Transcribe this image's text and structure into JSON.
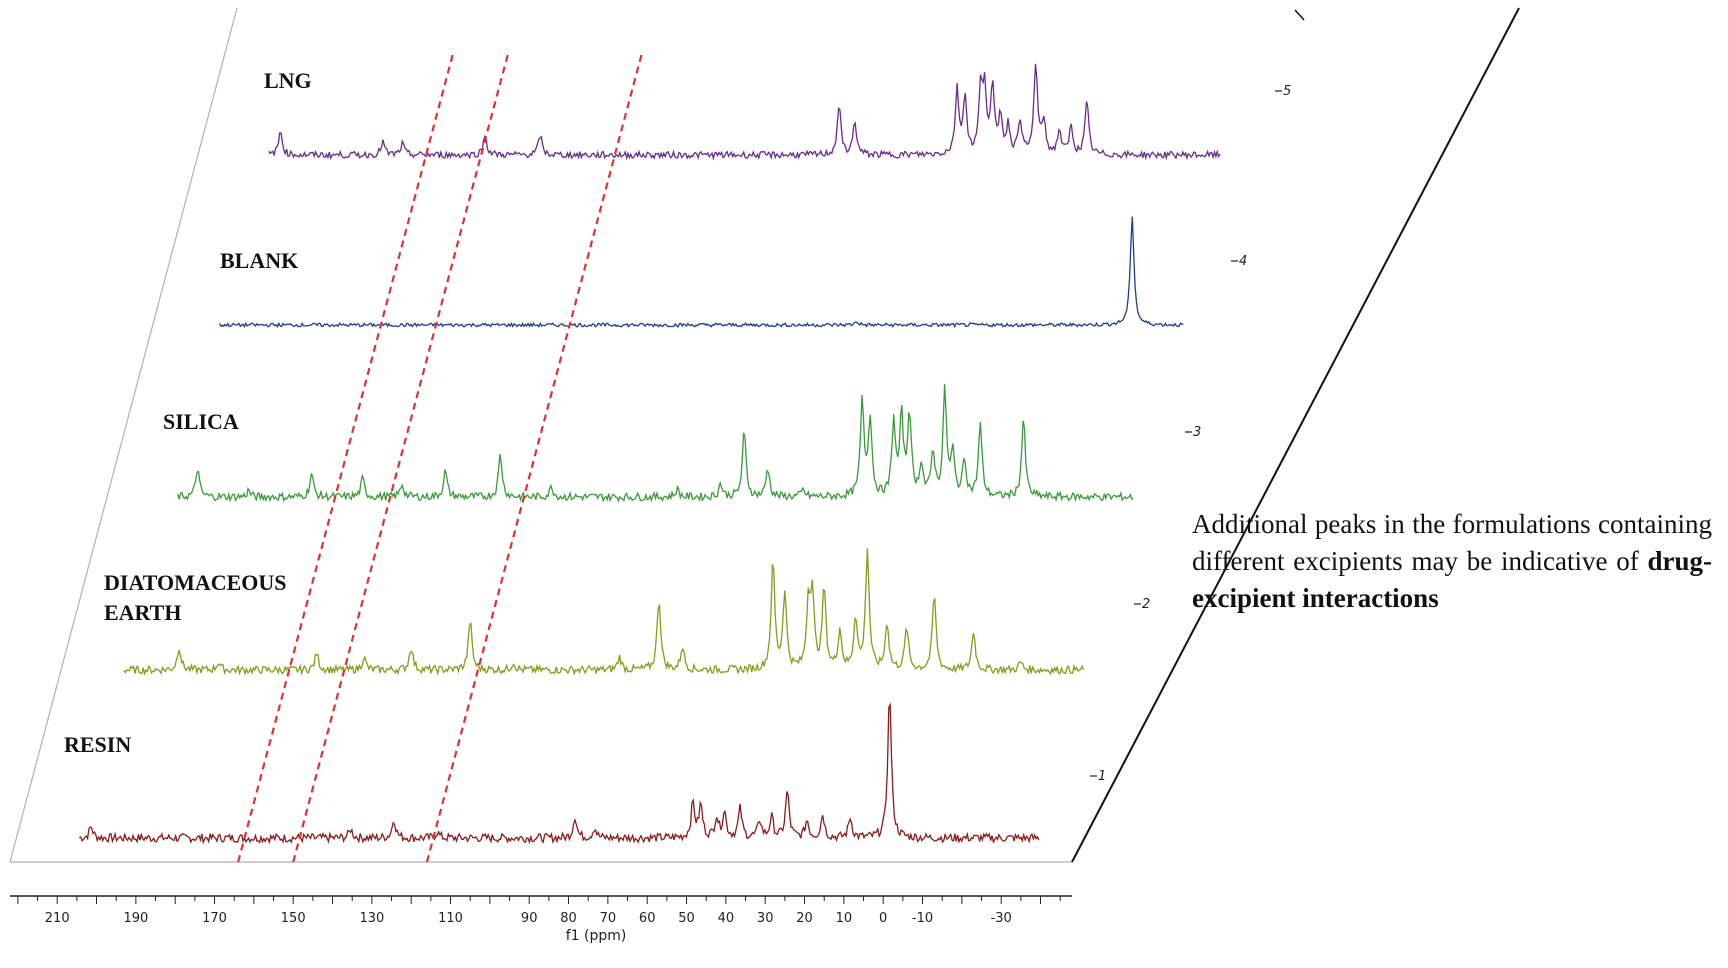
{
  "chart_data": {
    "type": "line",
    "title": "",
    "xlabel": "f1 (ppm)",
    "xlim": [
      222,
      -48
    ],
    "x_ticks": [
      210,
      190,
      170,
      150,
      130,
      110,
      90,
      80,
      70,
      60,
      50,
      40,
      30,
      20,
      10,
      0,
      -10,
      -30
    ],
    "stack_ticks": [
      "1",
      "2",
      "3",
      "4",
      "5"
    ],
    "grid": false,
    "legend": "none",
    "series": [
      {
        "name": "RESIN",
        "color": "#8b1a1a",
        "stack": 1,
        "x_range": [
          206,
          -38
        ],
        "peaks": [
          [
            203,
            0.08
          ],
          [
            137,
            0.06
          ],
          [
            126,
            0.13
          ],
          [
            115,
            0.04
          ],
          [
            80,
            0.15
          ],
          [
            75,
            0.07
          ],
          [
            50,
            0.24
          ],
          [
            48,
            0.22
          ],
          [
            44,
            0.14
          ],
          [
            42,
            0.18
          ],
          [
            38,
            0.2
          ],
          [
            33,
            0.12
          ],
          [
            30,
            0.14
          ],
          [
            26,
            0.32
          ],
          [
            21,
            0.12
          ],
          [
            17,
            0.16
          ],
          [
            10,
            0.14
          ],
          [
            0,
            1.0
          ]
        ]
      },
      {
        "name": "DIATOMACEOUS EARTH",
        "color": "#8a9a1c",
        "stack": 2,
        "x_range": [
          206,
          -38
        ],
        "peaks": [
          [
            192,
            0.18
          ],
          [
            182,
            0.06
          ],
          [
            157,
            0.13
          ],
          [
            145,
            0.1
          ],
          [
            133,
            0.18
          ],
          [
            118,
            0.38
          ],
          [
            107,
            0.06
          ],
          [
            80,
            0.1
          ],
          [
            70,
            0.55
          ],
          [
            64,
            0.18
          ],
          [
            41,
            0.82
          ],
          [
            38,
            0.6
          ],
          [
            32,
            0.5
          ],
          [
            31,
            0.55
          ],
          [
            28,
            0.62
          ],
          [
            24,
            0.3
          ],
          [
            20,
            0.4
          ],
          [
            17,
            0.92
          ],
          [
            12,
            0.36
          ],
          [
            7,
            0.32
          ],
          [
            0,
            0.58
          ],
          [
            -10,
            0.3
          ],
          [
            -22,
            0.06
          ]
        ]
      },
      {
        "name": "SILICA",
        "color": "#3a9a3a",
        "stack": 3,
        "x_range": [
          204,
          -39
        ],
        "peaks": [
          [
            199,
            0.22
          ],
          [
            186,
            0.05
          ],
          [
            170,
            0.18
          ],
          [
            157,
            0.14
          ],
          [
            147,
            0.1
          ],
          [
            136,
            0.2
          ],
          [
            122,
            0.33
          ],
          [
            109,
            0.08
          ],
          [
            77,
            0.06
          ],
          [
            66,
            0.1
          ],
          [
            60,
            0.5
          ],
          [
            54,
            0.22
          ],
          [
            45,
            0.05
          ],
          [
            30,
            0.72
          ],
          [
            28,
            0.6
          ],
          [
            22,
            0.56
          ],
          [
            20,
            0.6
          ],
          [
            18,
            0.64
          ],
          [
            15,
            0.24
          ],
          [
            12,
            0.34
          ],
          [
            9,
            0.8
          ],
          [
            7,
            0.32
          ],
          [
            4,
            0.28
          ],
          [
            0,
            0.55
          ],
          [
            -11,
            0.6
          ]
        ]
      },
      {
        "name": "BLANK",
        "color": "#1c3f8c",
        "stack": 4,
        "x_range": [
          205,
          -40
        ],
        "peaks": [
          [
            43,
            0.03
          ],
          [
            -27,
            0.92
          ]
        ]
      },
      {
        "name": "LNG",
        "color": "#6a2a8c",
        "stack": 5,
        "x_range": [
          204,
          -38
        ],
        "peaks": [
          [
            201,
            0.22
          ],
          [
            175,
            0.12
          ],
          [
            170,
            0.1
          ],
          [
            149,
            0.18
          ],
          [
            135,
            0.18
          ],
          [
            59,
            0.45
          ],
          [
            55,
            0.3
          ],
          [
            29,
            0.58
          ],
          [
            27,
            0.52
          ],
          [
            23,
            0.55
          ],
          [
            22,
            0.57
          ],
          [
            20,
            0.58
          ],
          [
            18,
            0.35
          ],
          [
            16,
            0.25
          ],
          [
            13,
            0.32
          ],
          [
            9,
            0.82
          ],
          [
            7,
            0.3
          ],
          [
            3,
            0.22
          ],
          [
            0,
            0.25
          ],
          [
            -4,
            0.48
          ]
        ]
      }
    ],
    "annotations": {
      "dashed_line_color": "#e03030",
      "dashed_lines_ppm": [
        164,
        150,
        116
      ]
    }
  },
  "annotation": {
    "text_plain": "Additional peaks in the formulations containing different excipients may be indicative of ",
    "text_bold": "drug-excipient interactions"
  }
}
